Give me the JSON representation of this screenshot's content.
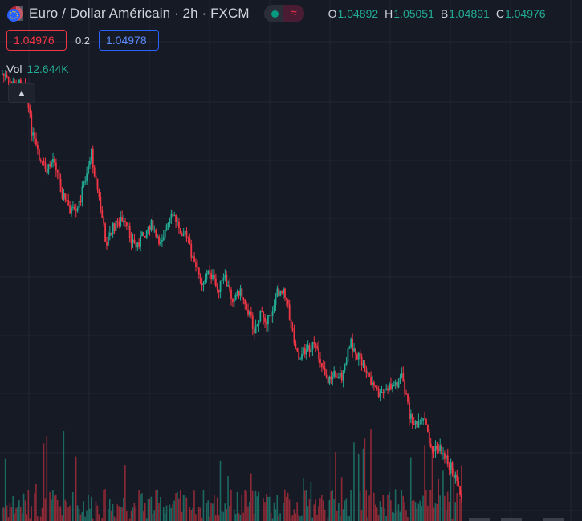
{
  "header": {
    "title": "Euro / Dollar Américain · 2h · FXCM",
    "ohlc": [
      {
        "key": "O",
        "value": "1.04892"
      },
      {
        "key": "H",
        "value": "1.05051"
      },
      {
        "key": "B",
        "value": "1.04891"
      },
      {
        "key": "C",
        "value": "1.04976"
      }
    ],
    "status_icon": "market-open-dot",
    "wave_icon": "≈"
  },
  "trade": {
    "sell_price": "1.04976",
    "spread": "0.2",
    "buy_price": "1.04978"
  },
  "volume": {
    "label": "Vol",
    "value": "12.644K"
  },
  "colors": {
    "background": "#161a25",
    "grid": "#232733",
    "up": "#22ab94",
    "down": "#f23645",
    "buy": "#2962ff"
  },
  "chart_data": {
    "type": "candlestick",
    "title": "Euro / Dollar Américain · 2h · FXCM",
    "series": [
      {
        "name": "EURUSD",
        "close_path_relative": [
          0.0,
          -0.00025,
          -0.0003,
          -0.0002,
          -0.0015,
          -0.0022,
          -0.0025,
          -0.0021,
          -0.003,
          -0.0034,
          -0.0036,
          -0.0028,
          -0.002,
          -0.0031,
          -0.0043,
          -0.0039,
          -0.0037,
          -0.004,
          -0.0044,
          -0.0041,
          -0.0038,
          -0.0043,
          -0.004,
          -0.0036,
          -0.0039,
          -0.0042,
          -0.0049,
          -0.0053,
          -0.005,
          -0.0055,
          -0.0052,
          -0.0057,
          -0.0055,
          -0.0059,
          -0.0065,
          -0.0061,
          -0.0063,
          -0.0056,
          -0.0054,
          -0.0064,
          -0.0072,
          -0.007,
          -0.0069,
          -0.0073,
          -0.0078,
          -0.0076,
          -0.0077,
          -0.0068,
          -0.0072,
          -0.0075,
          -0.0079,
          -0.0082,
          -0.008,
          -0.0079,
          -0.0077,
          -0.0087,
          -0.009,
          -0.0088,
          -0.0096,
          -0.0095,
          -0.0098,
          -0.0102,
          -0.0107
        ]
      }
    ],
    "grid": true
  }
}
